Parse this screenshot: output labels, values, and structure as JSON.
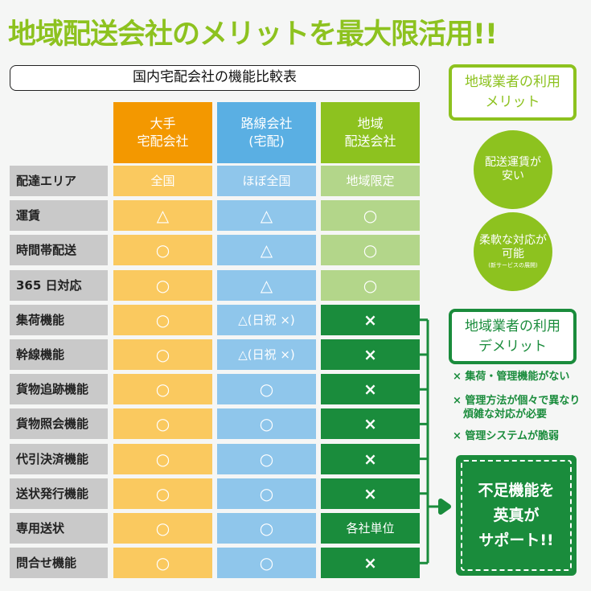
{
  "title": "地域配送会社のメリットを最大限活用!!",
  "table_title": "国内宅配会社の機能比較表",
  "columns": [
    {
      "label": "大手\n宅配会社",
      "header_color": "#f39800",
      "cell_color": "#fac95f"
    },
    {
      "label": "路線会社\n(宅配)",
      "header_color": "#5aafe3",
      "cell_color": "#8fc6eb"
    },
    {
      "label": "地域\n配送会社",
      "header_color": "#8dc21f",
      "cell_color": "#b3d68a",
      "alt_cell_color": "#1a8c3c"
    }
  ],
  "rows": [
    {
      "label": "配達エリア",
      "values": [
        "全国",
        "ほぼ全国",
        "地域限定"
      ]
    },
    {
      "label": "運賃",
      "values": [
        "△",
        "△",
        "○"
      ]
    },
    {
      "label": "時間帯配送",
      "values": [
        "○",
        "△",
        "○"
      ]
    },
    {
      "label": "365 日対応",
      "values": [
        "○",
        "△",
        "○"
      ]
    },
    {
      "label": "集荷機能",
      "values": [
        "○",
        "△(日祝 ×)",
        "×"
      ]
    },
    {
      "label": "幹線機能",
      "values": [
        "○",
        "△(日祝 ×)",
        "×"
      ]
    },
    {
      "label": "貨物追跡機能",
      "values": [
        "○",
        "○",
        "×"
      ]
    },
    {
      "label": "貨物照会機能",
      "values": [
        "○",
        "○",
        "×"
      ]
    },
    {
      "label": "代引決済機能",
      "values": [
        "○",
        "○",
        "×"
      ]
    },
    {
      "label": "送状発行機能",
      "values": [
        "○",
        "○",
        "×"
      ]
    },
    {
      "label": "専用送状",
      "values": [
        "○",
        "○",
        "各社単位"
      ]
    },
    {
      "label": "問合せ機能",
      "values": [
        "○",
        "○",
        "×"
      ]
    }
  ],
  "merit": {
    "title": "地域業者の利用\nメリット",
    "points": [
      {
        "main": "配送運賃が\n安い"
      },
      {
        "main": "柔軟な対応が\n可能",
        "sub": "(新サービスの展開)"
      }
    ]
  },
  "demerit": {
    "title": "地域業者の利用\nデメリット",
    "points": [
      "× 集荷・管理機能がない",
      "× 管理方法が個々で異なり\n　煩雑な対応が必要",
      "× 管理システムが脆弱"
    ]
  },
  "support": "不足機能を\n英真が\nサポート!!"
}
